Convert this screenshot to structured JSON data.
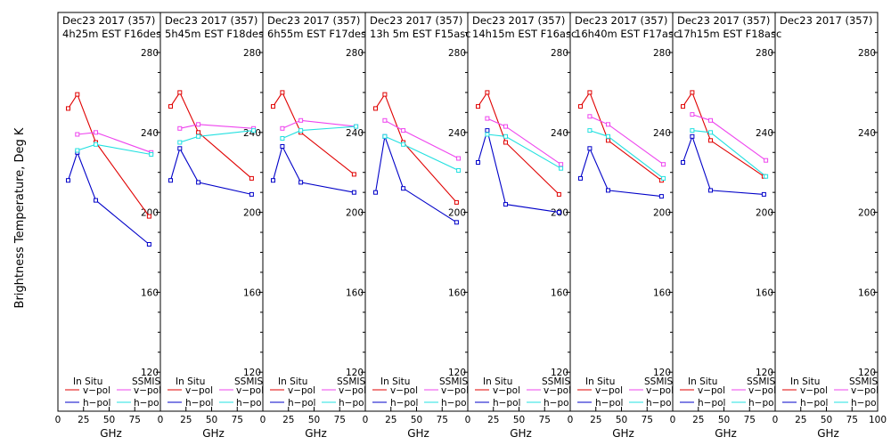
{
  "ylabel": "Brightness Temperature, Deg K",
  "xlabel": "GHz",
  "legend": {
    "insitu_title": "In Situ",
    "ssmis_title": "SSMIS",
    "vpol": "v−pol",
    "hpol": "h−pol"
  },
  "colors": {
    "insitu_v": "#e00000",
    "insitu_h": "#0000c8",
    "ssmis_v": "#ee44ee",
    "ssmis_h": "#22e0e0"
  },
  "chart_data": [
    {
      "type": "line",
      "title": [
        "Dec23 2017 (357)",
        "4h25m EST F16des"
      ],
      "xticks": [
        "0",
        "25",
        "50",
        "75",
        "100"
      ],
      "yticks": [
        "120",
        "160",
        "200",
        "240",
        "280"
      ],
      "xlim": [
        0,
        100
      ],
      "ylim": [
        110,
        290
      ],
      "series": [
        {
          "key": "insitu_v",
          "x": [
            10,
            19,
            37,
            89
          ],
          "y": [
            252,
            259,
            235,
            198
          ]
        },
        {
          "key": "insitu_h",
          "x": [
            10,
            19,
            37,
            89
          ],
          "y": [
            216,
            230,
            206,
            184
          ]
        },
        {
          "key": "ssmis_v",
          "x": [
            19,
            37,
            91
          ],
          "y": [
            239,
            240,
            230
          ]
        },
        {
          "key": "ssmis_h",
          "x": [
            19,
            37,
            91
          ],
          "y": [
            231,
            234,
            229
          ]
        }
      ]
    },
    {
      "type": "line",
      "title": [
        "Dec23 2017 (357)",
        "5h45m EST F18des"
      ],
      "xticks": [
        "0",
        "25",
        "50",
        "75",
        "100"
      ],
      "yticks": [
        "120",
        "160",
        "200",
        "240",
        "280"
      ],
      "xlim": [
        0,
        100
      ],
      "ylim": [
        110,
        290
      ],
      "series": [
        {
          "key": "insitu_v",
          "x": [
            10,
            19,
            37,
            89
          ],
          "y": [
            253,
            260,
            240,
            217
          ]
        },
        {
          "key": "insitu_h",
          "x": [
            10,
            19,
            37,
            89
          ],
          "y": [
            216,
            232,
            215,
            209
          ]
        },
        {
          "key": "ssmis_v",
          "x": [
            19,
            37,
            91
          ],
          "y": [
            242,
            244,
            242
          ]
        },
        {
          "key": "ssmis_h",
          "x": [
            19,
            37,
            91
          ],
          "y": [
            235,
            238,
            241
          ]
        }
      ]
    },
    {
      "type": "line",
      "title": [
        "Dec23 2017 (357)",
        "6h55m EST F17des"
      ],
      "xticks": [
        "0",
        "25",
        "50",
        "75",
        "100"
      ],
      "yticks": [
        "120",
        "160",
        "200",
        "240",
        "280"
      ],
      "xlim": [
        0,
        100
      ],
      "ylim": [
        110,
        290
      ],
      "series": [
        {
          "key": "insitu_v",
          "x": [
            10,
            19,
            37,
            89
          ],
          "y": [
            253,
            260,
            240,
            219
          ]
        },
        {
          "key": "insitu_h",
          "x": [
            10,
            19,
            37,
            89
          ],
          "y": [
            216,
            233,
            215,
            210
          ]
        },
        {
          "key": "ssmis_v",
          "x": [
            19,
            37,
            91
          ],
          "y": [
            242,
            246,
            243
          ]
        },
        {
          "key": "ssmis_h",
          "x": [
            19,
            37,
            91
          ],
          "y": [
            237,
            241,
            243
          ]
        }
      ]
    },
    {
      "type": "line",
      "title": [
        "Dec23 2017 (357)",
        "13h 5m EST F15asc"
      ],
      "xticks": [
        "0",
        "25",
        "50",
        "75",
        "100"
      ],
      "yticks": [
        "120",
        "160",
        "200",
        "240",
        "280"
      ],
      "xlim": [
        0,
        100
      ],
      "ylim": [
        110,
        290
      ],
      "series": [
        {
          "key": "insitu_v",
          "x": [
            10,
            19,
            37,
            89
          ],
          "y": [
            252,
            259,
            235,
            205
          ]
        },
        {
          "key": "insitu_h",
          "x": [
            10,
            19,
            37,
            89
          ],
          "y": [
            210,
            238,
            212,
            195
          ]
        },
        {
          "key": "ssmis_v",
          "x": [
            19,
            37,
            91
          ],
          "y": [
            246,
            241,
            227
          ]
        },
        {
          "key": "ssmis_h",
          "x": [
            19,
            37,
            91
          ],
          "y": [
            238,
            234,
            221
          ]
        }
      ]
    },
    {
      "type": "line",
      "title": [
        "Dec23 2017 (357)",
        "14h15m EST F16asc"
      ],
      "xticks": [
        "0",
        "25",
        "50",
        "75",
        "100"
      ],
      "yticks": [
        "120",
        "160",
        "200",
        "240",
        "280"
      ],
      "xlim": [
        0,
        100
      ],
      "ylim": [
        110,
        290
      ],
      "series": [
        {
          "key": "insitu_v",
          "x": [
            10,
            19,
            37,
            89
          ],
          "y": [
            253,
            260,
            235,
            209
          ]
        },
        {
          "key": "insitu_h",
          "x": [
            10,
            19,
            37,
            89
          ],
          "y": [
            225,
            241,
            204,
            200
          ]
        },
        {
          "key": "ssmis_v",
          "x": [
            19,
            37,
            91
          ],
          "y": [
            247,
            243,
            224
          ]
        },
        {
          "key": "ssmis_h",
          "x": [
            19,
            37,
            91
          ],
          "y": [
            239,
            238,
            222
          ]
        }
      ]
    },
    {
      "type": "line",
      "title": [
        "Dec23 2017 (357)",
        "16h40m EST F17asc"
      ],
      "xticks": [
        "0",
        "25",
        "50",
        "75",
        "100"
      ],
      "yticks": [
        "120",
        "160",
        "200",
        "240",
        "280"
      ],
      "xlim": [
        0,
        100
      ],
      "ylim": [
        110,
        290
      ],
      "series": [
        {
          "key": "insitu_v",
          "x": [
            10,
            19,
            37,
            89
          ],
          "y": [
            253,
            260,
            236,
            216
          ]
        },
        {
          "key": "insitu_h",
          "x": [
            10,
            19,
            37,
            89
          ],
          "y": [
            217,
            232,
            211,
            208
          ]
        },
        {
          "key": "ssmis_v",
          "x": [
            19,
            37,
            91
          ],
          "y": [
            248,
            244,
            224
          ]
        },
        {
          "key": "ssmis_h",
          "x": [
            19,
            37,
            91
          ],
          "y": [
            241,
            238,
            217
          ]
        }
      ]
    },
    {
      "type": "line",
      "title": [
        "Dec23 2017 (357)",
        "17h15m EST F18asc"
      ],
      "xticks": [
        "0",
        "25",
        "50",
        "75",
        "100"
      ],
      "yticks": [
        "120",
        "160",
        "200",
        "240",
        "280"
      ],
      "xlim": [
        0,
        100
      ],
      "ylim": [
        110,
        290
      ],
      "series": [
        {
          "key": "insitu_v",
          "x": [
            10,
            19,
            37,
            89
          ],
          "y": [
            253,
            260,
            236,
            218
          ]
        },
        {
          "key": "insitu_h",
          "x": [
            10,
            19,
            37,
            89
          ],
          "y": [
            225,
            238,
            211,
            209
          ]
        },
        {
          "key": "ssmis_v",
          "x": [
            19,
            37,
            91
          ],
          "y": [
            249,
            246,
            226
          ]
        },
        {
          "key": "ssmis_h",
          "x": [
            19,
            37,
            91
          ],
          "y": [
            241,
            240,
            218
          ]
        }
      ]
    },
    {
      "type": "line",
      "title": [
        "Dec23 2017 (357)",
        ""
      ],
      "xticks": [
        "0",
        "25",
        "50",
        "75",
        "100"
      ],
      "yticks": [
        "120",
        "160",
        "200",
        "240",
        "280"
      ],
      "xlim": [
        0,
        100
      ],
      "ylim": [
        110,
        290
      ],
      "series": []
    }
  ]
}
